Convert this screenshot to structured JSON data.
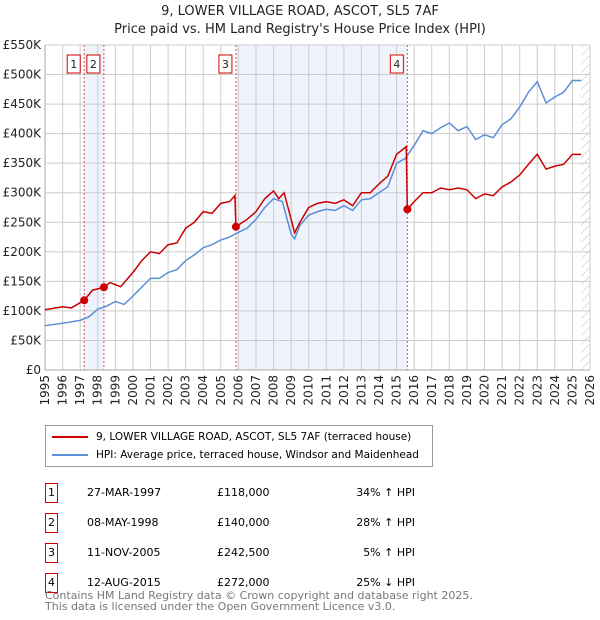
{
  "header": {
    "title": "9, LOWER VILLAGE ROAD, ASCOT, SL5 7AF",
    "subtitle": "Price paid vs. HM Land Registry's House Price Index (HPI)"
  },
  "chart_data": {
    "type": "line",
    "title": "9, LOWER VILLAGE ROAD, ASCOT, SL5 7AF",
    "subtitle": "Price paid vs. HM Land Registry's House Price Index (HPI)",
    "xlim": [
      1995,
      2026
    ],
    "ylim": [
      0,
      550000
    ],
    "x_ticks": [
      "1995",
      "1996",
      "1997",
      "1998",
      "1999",
      "2000",
      "2001",
      "2002",
      "2003",
      "2004",
      "2005",
      "2006",
      "2007",
      "2008",
      "2009",
      "2010",
      "2011",
      "2012",
      "2013",
      "2014",
      "2015",
      "2016",
      "2017",
      "2018",
      "2019",
      "2020",
      "2021",
      "2022",
      "2023",
      "2024",
      "2025",
      "2026"
    ],
    "y_ticks": [
      {
        "v": 0,
        "label": "£0"
      },
      {
        "v": 50000,
        "label": "£50K"
      },
      {
        "v": 100000,
        "label": "£100K"
      },
      {
        "v": 150000,
        "label": "£150K"
      },
      {
        "v": 200000,
        "label": "£200K"
      },
      {
        "v": 250000,
        "label": "£250K"
      },
      {
        "v": 300000,
        "label": "£300K"
      },
      {
        "v": 350000,
        "label": "£350K"
      },
      {
        "v": 400000,
        "label": "£400K"
      },
      {
        "v": 450000,
        "label": "£450K"
      },
      {
        "v": 500000,
        "label": "£500K"
      },
      {
        "v": 550000,
        "label": "£550K"
      }
    ],
    "grid": true,
    "colors": {
      "price": "#cc0000",
      "hpi": "#5b8fd6",
      "shade": "#eef3fc"
    },
    "shaded_ranges": [
      [
        1997.23,
        1998.35
      ],
      [
        2005.86,
        2015.61
      ]
    ],
    "forecast_from": 2025.5,
    "series": [
      {
        "name": "9, LOWER VILLAGE ROAD, ASCOT, SL5 7AF (terraced house)",
        "color": "#cc0000",
        "x": [
          1995,
          1996,
          1996.5,
          1997.23,
          1997.7,
          1998.35,
          1998.7,
          1999.3,
          2000,
          2000.5,
          2001,
          2001.5,
          2002,
          2002.5,
          2003,
          2003.5,
          2004,
          2004.5,
          2005,
          2005.5,
          2005.8,
          2005.86,
          2006.5,
          2007,
          2007.5,
          2008,
          2008.3,
          2008.6,
          2009,
          2009.2,
          2009.5,
          2010,
          2010.5,
          2011,
          2011.5,
          2012,
          2012.5,
          2013,
          2013.5,
          2014,
          2014.5,
          2015,
          2015.55,
          2015.61,
          2016,
          2016.5,
          2017,
          2017.5,
          2018,
          2018.5,
          2019,
          2019.5,
          2020,
          2020.5,
          2021,
          2021.5,
          2022,
          2022.5,
          2023,
          2023.5,
          2024,
          2024.5,
          2025,
          2025.5
        ],
        "y": [
          102,
          107,
          105,
          118,
          135,
          140,
          148,
          141,
          165,
          185,
          200,
          197,
          212,
          215,
          240,
          250,
          268,
          265,
          282,
          285,
          295,
          242.5,
          255,
          268,
          290,
          303,
          290,
          300,
          255,
          232,
          250,
          275,
          282,
          285,
          282,
          288,
          278,
          300,
          300,
          315,
          328,
          365,
          378,
          272,
          285,
          300,
          300,
          308,
          305,
          308,
          305,
          290,
          298,
          295,
          310,
          318,
          330,
          348,
          365,
          340,
          345,
          348,
          365,
          365
        ]
      },
      {
        "name": "HPI: Average price, terraced house, Windsor and Maidenhead",
        "color": "#5b8fd6",
        "x": [
          1995,
          1996,
          1997,
          1997.5,
          1998,
          1998.5,
          1999,
          1999.5,
          2000,
          2000.5,
          2001,
          2001.5,
          2002,
          2002.5,
          2003,
          2003.5,
          2004,
          2004.5,
          2005,
          2005.5,
          2006,
          2006.5,
          2007,
          2007.5,
          2008,
          2008.5,
          2009,
          2009.2,
          2009.5,
          2010,
          2010.5,
          2011,
          2011.5,
          2012,
          2012.5,
          2013,
          2013.5,
          2014,
          2014.5,
          2015,
          2015.5,
          2016,
          2016.5,
          2017,
          2017.5,
          2018,
          2018.5,
          2019,
          2019.5,
          2020,
          2020.5,
          2021,
          2021.5,
          2022,
          2022.5,
          2023,
          2023.5,
          2024,
          2024.5,
          2025,
          2025.5
        ],
        "y": [
          75,
          79,
          84,
          90,
          103,
          108,
          116,
          111,
          125,
          140,
          155,
          155,
          165,
          170,
          185,
          195,
          207,
          212,
          220,
          225,
          233,
          240,
          255,
          275,
          290,
          285,
          230,
          222,
          245,
          262,
          268,
          272,
          270,
          278,
          270,
          288,
          290,
          300,
          310,
          350,
          358,
          380,
          405,
          400,
          410,
          418,
          405,
          412,
          390,
          398,
          393,
          415,
          425,
          445,
          470,
          488,
          452,
          462,
          470,
          490,
          490
        ]
      }
    ],
    "transactions": [
      {
        "n": "1",
        "date": "27-MAR-1997",
        "price": "£118,000",
        "hpi": "34% ↑ HPI",
        "x": 1997.23,
        "y": 118
      },
      {
        "n": "2",
        "date": "08-MAY-1998",
        "price": "£140,000",
        "hpi": "28% ↑ HPI",
        "x": 1998.35,
        "y": 140
      },
      {
        "n": "3",
        "date": "11-NOV-2005",
        "price": "£242,500",
        "hpi": "5% ↑ HPI",
        "x": 2005.86,
        "y": 242.5
      },
      {
        "n": "4",
        "date": "12-AUG-2015",
        "price": "£272,000",
        "hpi": "25% ↓ HPI",
        "x": 2015.61,
        "y": 272
      }
    ],
    "y_units": "thousands GBP"
  },
  "legend": {
    "price_label": "9, LOWER VILLAGE ROAD, ASCOT, SL5 7AF (terraced house)",
    "hpi_label": "HPI: Average price, terraced house, Windsor and Maidenhead"
  },
  "footer": {
    "line1": "Contains HM Land Registry data © Crown copyright and database right 2025.",
    "line2": "This data is licensed under the Open Government Licence v3.0."
  }
}
